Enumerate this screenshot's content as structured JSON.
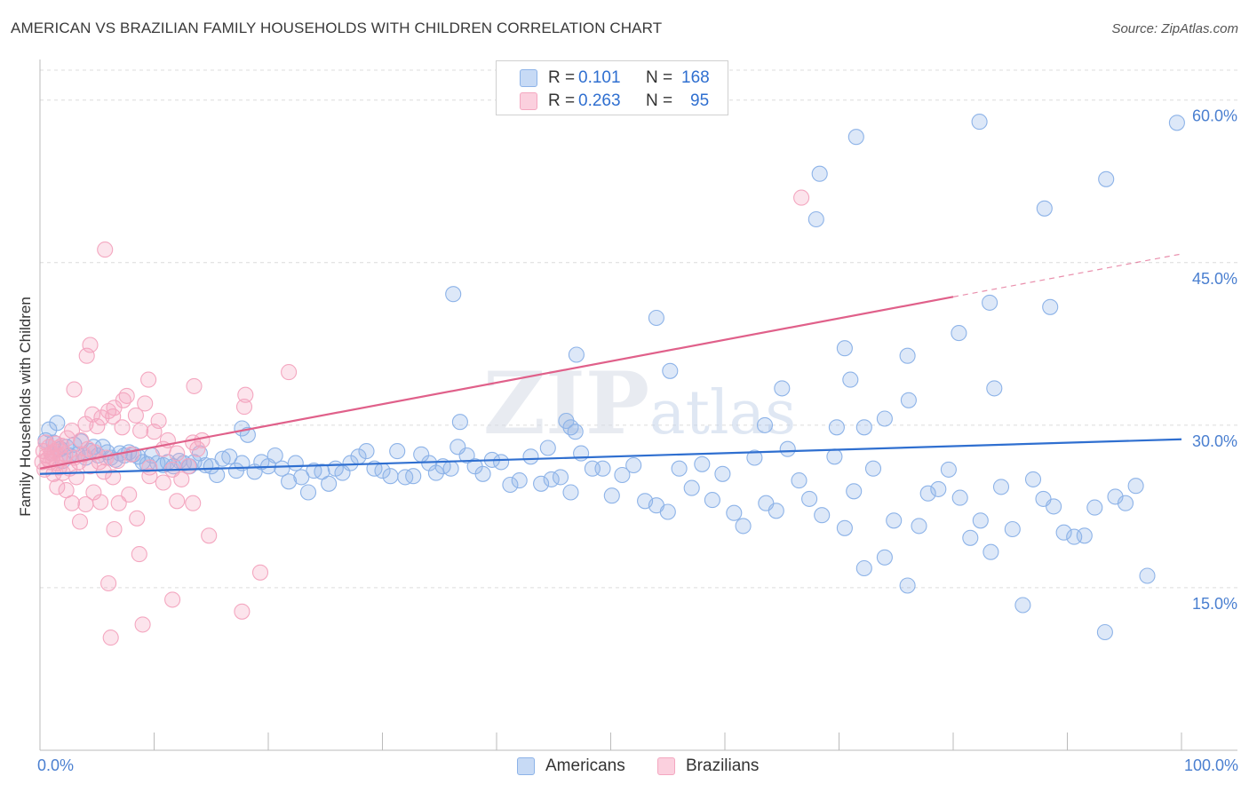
{
  "chart_data": {
    "type": "scatter",
    "title": "AMERICAN VS BRAZILIAN FAMILY HOUSEHOLDS WITH CHILDREN CORRELATION CHART",
    "source": "Source: ZipAtlas.com",
    "watermark": "ZIPatlas",
    "xlabel": "",
    "ylabel": "Family Households with Children",
    "xlim": [
      0,
      100
    ],
    "ylim": [
      0,
      63.5
    ],
    "x_tick_labels": {
      "min": "0.0%",
      "max": "100.0%"
    },
    "y_ticks": [
      {
        "value": 15,
        "label": "15.0%"
      },
      {
        "value": 30,
        "label": "30.0%"
      },
      {
        "value": 45,
        "label": "45.0%"
      },
      {
        "value": 60,
        "label": "60.0%"
      }
    ],
    "legend": {
      "rows": [
        {
          "r_label": "R =",
          "r_value": "0.101",
          "n_label": "N =",
          "n_value": "168"
        },
        {
          "r_label": "R =",
          "r_value": "0.263",
          "n_label": "N =",
          "n_value": "95"
        }
      ]
    },
    "series": [
      {
        "name": "Americans",
        "color": "#8db3e8",
        "line_color": "#2f6fd0",
        "r": 0.101,
        "n": 168,
        "trend": {
          "x0": 0,
          "y0": 25.5,
          "x1": 100,
          "y1": 28.7,
          "dash_from": 100
        },
        "points": [
          [
            0.5,
            28.6
          ],
          [
            0.8,
            29.6
          ],
          [
            1.0,
            27.4
          ],
          [
            1.2,
            28.4
          ],
          [
            1.5,
            30.2
          ],
          [
            1.8,
            27.8
          ],
          [
            2.0,
            26.7
          ],
          [
            2.3,
            28.0
          ],
          [
            2.6,
            27.2
          ],
          [
            3.0,
            28.2
          ],
          [
            3.3,
            27.3
          ],
          [
            3.6,
            28.5
          ],
          [
            4.0,
            27.0
          ],
          [
            4.4,
            27.6
          ],
          [
            4.7,
            28.0
          ],
          [
            5.1,
            27.2
          ],
          [
            5.5,
            28.0
          ],
          [
            5.9,
            27.5
          ],
          [
            6.2,
            27.0
          ],
          [
            6.6,
            26.8
          ],
          [
            7.0,
            27.4
          ],
          [
            7.4,
            27.2
          ],
          [
            7.8,
            27.5
          ],
          [
            8.2,
            27.3
          ],
          [
            8.6,
            27.1
          ],
          [
            9.0,
            26.6
          ],
          [
            9.4,
            26.4
          ],
          [
            9.8,
            27.2
          ],
          [
            10.3,
            26.5
          ],
          [
            10.8,
            26.3
          ],
          [
            11.2,
            26.6
          ],
          [
            11.7,
            26.2
          ],
          [
            12.2,
            26.7
          ],
          [
            12.6,
            26.5
          ],
          [
            13.1,
            26.2
          ],
          [
            13.5,
            26.6
          ],
          [
            14.0,
            27.4
          ],
          [
            14.5,
            26.3
          ],
          [
            15.0,
            26.2
          ],
          [
            15.5,
            25.4
          ],
          [
            16.0,
            26.9
          ],
          [
            16.6,
            27.1
          ],
          [
            17.2,
            25.8
          ],
          [
            17.7,
            26.5
          ],
          [
            18.2,
            29.1
          ],
          [
            18.8,
            25.7
          ],
          [
            19.4,
            26.6
          ],
          [
            20.0,
            26.2
          ],
          [
            20.6,
            27.2
          ],
          [
            21.2,
            26.0
          ],
          [
            21.8,
            24.8
          ],
          [
            22.4,
            26.5
          ],
          [
            22.9,
            25.2
          ],
          [
            23.5,
            23.8
          ],
          [
            24.0,
            25.8
          ],
          [
            24.7,
            25.7
          ],
          [
            25.3,
            24.6
          ],
          [
            25.9,
            26.0
          ],
          [
            26.5,
            25.6
          ],
          [
            27.2,
            26.5
          ],
          [
            27.9,
            27.1
          ],
          [
            28.6,
            27.6
          ],
          [
            29.3,
            26.0
          ],
          [
            30.0,
            25.8
          ],
          [
            30.7,
            25.3
          ],
          [
            31.3,
            27.6
          ],
          [
            32.0,
            25.2
          ],
          [
            32.7,
            25.3
          ],
          [
            33.4,
            27.3
          ],
          [
            34.1,
            26.5
          ],
          [
            34.7,
            25.6
          ],
          [
            35.3,
            26.2
          ],
          [
            36.0,
            26.0
          ],
          [
            36.6,
            28.0
          ],
          [
            37.4,
            27.2
          ],
          [
            38.1,
            26.2
          ],
          [
            38.8,
            25.5
          ],
          [
            39.6,
            26.8
          ],
          [
            40.4,
            26.6
          ],
          [
            41.2,
            24.5
          ],
          [
            42.0,
            24.9
          ],
          [
            43.0,
            27.1
          ],
          [
            43.9,
            24.6
          ],
          [
            44.8,
            25.0
          ],
          [
            45.6,
            25.2
          ],
          [
            46.5,
            23.8
          ],
          [
            47.4,
            27.4
          ],
          [
            48.4,
            26.0
          ],
          [
            49.3,
            26.0
          ],
          [
            50.1,
            23.5
          ],
          [
            51.0,
            25.4
          ],
          [
            52.0,
            26.3
          ],
          [
            53.0,
            23.0
          ],
          [
            54.0,
            22.6
          ],
          [
            55.0,
            22.0
          ],
          [
            56.0,
            26.0
          ],
          [
            57.1,
            24.2
          ],
          [
            58.0,
            26.4
          ],
          [
            58.9,
            23.1
          ],
          [
            59.8,
            25.5
          ],
          [
            60.8,
            21.9
          ],
          [
            61.6,
            20.7
          ],
          [
            62.6,
            27.0
          ],
          [
            63.6,
            22.8
          ],
          [
            64.5,
            22.1
          ],
          [
            65.5,
            27.8
          ],
          [
            66.5,
            24.9
          ],
          [
            67.4,
            23.2
          ],
          [
            68.5,
            21.7
          ],
          [
            69.6,
            27.1
          ],
          [
            70.5,
            20.5
          ],
          [
            71.3,
            23.9
          ],
          [
            72.2,
            16.8
          ],
          [
            73.0,
            26.0
          ],
          [
            74.0,
            17.8
          ],
          [
            74.8,
            21.2
          ],
          [
            76.0,
            15.2
          ],
          [
            77.0,
            20.7
          ],
          [
            77.8,
            23.7
          ],
          [
            78.7,
            24.1
          ],
          [
            79.6,
            25.9
          ],
          [
            80.6,
            23.3
          ],
          [
            81.5,
            19.6
          ],
          [
            82.4,
            21.2
          ],
          [
            83.3,
            18.3
          ],
          [
            84.2,
            24.3
          ],
          [
            85.2,
            20.4
          ],
          [
            86.1,
            13.4
          ],
          [
            87.0,
            25.0
          ],
          [
            87.9,
            23.2
          ],
          [
            88.8,
            22.5
          ],
          [
            89.7,
            20.1
          ],
          [
            90.6,
            19.7
          ],
          [
            91.5,
            19.8
          ],
          [
            92.4,
            22.4
          ],
          [
            93.3,
            10.9
          ],
          [
            94.2,
            23.4
          ],
          [
            95.1,
            22.8
          ],
          [
            96.0,
            24.4
          ],
          [
            97.0,
            16.1
          ],
          [
            36.2,
            42.1
          ],
          [
            47.0,
            36.5
          ],
          [
            54.0,
            39.9
          ],
          [
            68.0,
            49.0
          ],
          [
            68.3,
            53.2
          ],
          [
            71.5,
            56.6
          ],
          [
            82.3,
            58.0
          ],
          [
            88.0,
            50.0
          ],
          [
            93.4,
            52.7
          ],
          [
            99.6,
            57.9
          ],
          [
            83.2,
            41.3
          ],
          [
            88.5,
            40.9
          ],
          [
            80.5,
            38.5
          ],
          [
            76.0,
            36.4
          ],
          [
            70.5,
            37.1
          ],
          [
            71.0,
            34.2
          ],
          [
            55.2,
            35.0
          ],
          [
            65.0,
            33.4
          ],
          [
            83.6,
            33.4
          ],
          [
            74.0,
            30.6
          ],
          [
            76.1,
            32.3
          ],
          [
            36.8,
            30.3
          ],
          [
            46.1,
            30.4
          ],
          [
            46.5,
            29.8
          ],
          [
            46.9,
            29.4
          ],
          [
            63.5,
            30.0
          ],
          [
            69.8,
            29.8
          ],
          [
            72.2,
            29.8
          ],
          [
            44.5,
            27.9
          ],
          [
            17.7,
            29.7
          ]
        ]
      },
      {
        "name": "Brazilians",
        "color": "#f4a7c0",
        "line_color": "#e0608a",
        "r": 0.263,
        "n": 95,
        "trend": {
          "x0": 0,
          "y0": 26.0,
          "x1": 100,
          "y1": 45.8,
          "dash_from": 80
        },
        "points": [
          [
            0.2,
            26.6
          ],
          [
            0.3,
            27.6
          ],
          [
            0.4,
            25.9
          ],
          [
            0.5,
            28.4
          ],
          [
            0.6,
            27.2
          ],
          [
            0.7,
            26.9
          ],
          [
            0.8,
            28.0
          ],
          [
            0.9,
            26.6
          ],
          [
            1.0,
            27.4
          ],
          [
            1.1,
            27.0
          ],
          [
            1.2,
            25.5
          ],
          [
            1.3,
            27.6
          ],
          [
            1.4,
            28.3
          ],
          [
            1.5,
            26.5
          ],
          [
            1.6,
            27.9
          ],
          [
            1.7,
            26.1
          ],
          [
            1.8,
            27.2
          ],
          [
            1.9,
            28.1
          ],
          [
            2.0,
            25.6
          ],
          [
            2.2,
            27.3
          ],
          [
            2.4,
            28.8
          ],
          [
            2.6,
            26.0
          ],
          [
            2.8,
            29.5
          ],
          [
            3.0,
            27.0
          ],
          [
            3.2,
            25.2
          ],
          [
            3.4,
            26.6
          ],
          [
            3.6,
            28.6
          ],
          [
            3.8,
            27.3
          ],
          [
            4.0,
            30.1
          ],
          [
            4.2,
            27.8
          ],
          [
            4.4,
            26.2
          ],
          [
            4.6,
            31.0
          ],
          [
            4.8,
            27.5
          ],
          [
            5.0,
            29.9
          ],
          [
            5.2,
            26.6
          ],
          [
            5.4,
            30.7
          ],
          [
            5.6,
            25.7
          ],
          [
            5.8,
            27.0
          ],
          [
            6.0,
            31.3
          ],
          [
            6.4,
            30.8
          ],
          [
            6.8,
            26.7
          ],
          [
            7.2,
            29.8
          ],
          [
            7.6,
            32.7
          ],
          [
            8.0,
            27.3
          ],
          [
            8.4,
            30.9
          ],
          [
            8.8,
            29.5
          ],
          [
            9.2,
            32.0
          ],
          [
            9.6,
            26.1
          ],
          [
            10.0,
            29.4
          ],
          [
            10.4,
            30.4
          ],
          [
            10.8,
            27.8
          ],
          [
            11.2,
            28.6
          ],
          [
            11.6,
            25.9
          ],
          [
            12.0,
            27.4
          ],
          [
            12.4,
            25.0
          ],
          [
            13.0,
            26.2
          ],
          [
            13.4,
            28.4
          ],
          [
            13.8,
            27.8
          ],
          [
            14.2,
            28.6
          ],
          [
            1.5,
            24.3
          ],
          [
            2.3,
            24.0
          ],
          [
            2.8,
            22.8
          ],
          [
            3.5,
            21.1
          ],
          [
            4.0,
            22.7
          ],
          [
            4.7,
            23.8
          ],
          [
            5.3,
            22.9
          ],
          [
            6.4,
            25.2
          ],
          [
            6.9,
            22.8
          ],
          [
            7.8,
            23.6
          ],
          [
            8.5,
            21.4
          ],
          [
            9.6,
            25.3
          ],
          [
            10.8,
            24.7
          ],
          [
            12.0,
            23.0
          ],
          [
            13.4,
            22.8
          ],
          [
            14.8,
            19.8
          ],
          [
            6.5,
            20.4
          ],
          [
            8.7,
            18.1
          ],
          [
            6.0,
            15.4
          ],
          [
            6.2,
            10.4
          ],
          [
            9.0,
            11.6
          ],
          [
            11.6,
            13.9
          ],
          [
            17.7,
            12.8
          ],
          [
            19.3,
            16.4
          ],
          [
            4.1,
            36.4
          ],
          [
            3.0,
            33.3
          ],
          [
            4.4,
            37.4
          ],
          [
            6.5,
            31.6
          ],
          [
            7.3,
            32.3
          ],
          [
            18.0,
            32.8
          ],
          [
            17.9,
            31.7
          ],
          [
            21.8,
            34.9
          ],
          [
            13.5,
            33.6
          ],
          [
            5.7,
            46.2
          ],
          [
            66.7,
            51.0
          ],
          [
            9.5,
            34.2
          ]
        ]
      }
    ]
  },
  "bottom_legend": [
    {
      "label": "Americans"
    },
    {
      "label": "Brazilians"
    }
  ]
}
